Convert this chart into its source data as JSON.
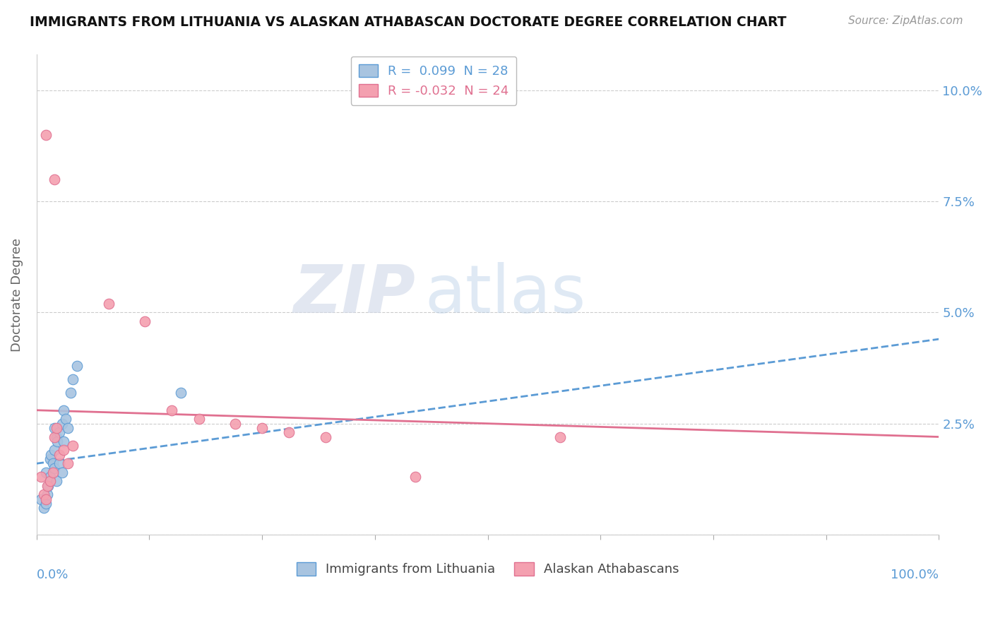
{
  "title": "IMMIGRANTS FROM LITHUANIA VS ALASKAN ATHABASCAN DOCTORATE DEGREE CORRELATION CHART",
  "source": "Source: ZipAtlas.com",
  "ylabel": "Doctorate Degree",
  "yticks": [
    0.0,
    0.025,
    0.05,
    0.075,
    0.1
  ],
  "ytick_labels": [
    "",
    "2.5%",
    "5.0%",
    "7.5%",
    "10.0%"
  ],
  "xlim": [
    0,
    1.0
  ],
  "ylim": [
    0,
    0.108
  ],
  "legend_blue_r": "R =  0.099",
  "legend_blue_n": "N = 28",
  "legend_pink_r": "R = -0.032",
  "legend_pink_n": "N = 24",
  "blue_color": "#a8c4e0",
  "pink_color": "#f4a0b0",
  "blue_line_color": "#5b9bd5",
  "pink_line_color": "#e07090",
  "watermark_zip": "ZIP",
  "watermark_atlas": "atlas",
  "blue_scatter_x": [
    0.005,
    0.008,
    0.01,
    0.01,
    0.012,
    0.013,
    0.015,
    0.015,
    0.016,
    0.018,
    0.02,
    0.02,
    0.02,
    0.022,
    0.022,
    0.023,
    0.025,
    0.025,
    0.028,
    0.028,
    0.03,
    0.03,
    0.032,
    0.035,
    0.038,
    0.04,
    0.045,
    0.16
  ],
  "blue_scatter_y": [
    0.008,
    0.006,
    0.007,
    0.014,
    0.009,
    0.011,
    0.013,
    0.017,
    0.018,
    0.016,
    0.015,
    0.019,
    0.024,
    0.012,
    0.022,
    0.021,
    0.016,
    0.023,
    0.014,
    0.025,
    0.021,
    0.028,
    0.026,
    0.024,
    0.032,
    0.035,
    0.038,
    0.032
  ],
  "pink_scatter_x": [
    0.005,
    0.008,
    0.01,
    0.012,
    0.015,
    0.018,
    0.02,
    0.022,
    0.025,
    0.03,
    0.035,
    0.04,
    0.08,
    0.12,
    0.15,
    0.18,
    0.22,
    0.25,
    0.28,
    0.32,
    0.42,
    0.58,
    0.01,
    0.02
  ],
  "pink_scatter_y": [
    0.013,
    0.009,
    0.008,
    0.011,
    0.012,
    0.014,
    0.022,
    0.024,
    0.018,
    0.019,
    0.016,
    0.02,
    0.052,
    0.048,
    0.028,
    0.026,
    0.025,
    0.024,
    0.023,
    0.022,
    0.013,
    0.022,
    0.09,
    0.08
  ],
  "blue_trend_x0": 0.0,
  "blue_trend_y0": 0.016,
  "blue_trend_x1": 1.0,
  "blue_trend_y1": 0.044,
  "pink_trend_x0": 0.0,
  "pink_trend_y0": 0.028,
  "pink_trend_x1": 1.0,
  "pink_trend_y1": 0.022
}
